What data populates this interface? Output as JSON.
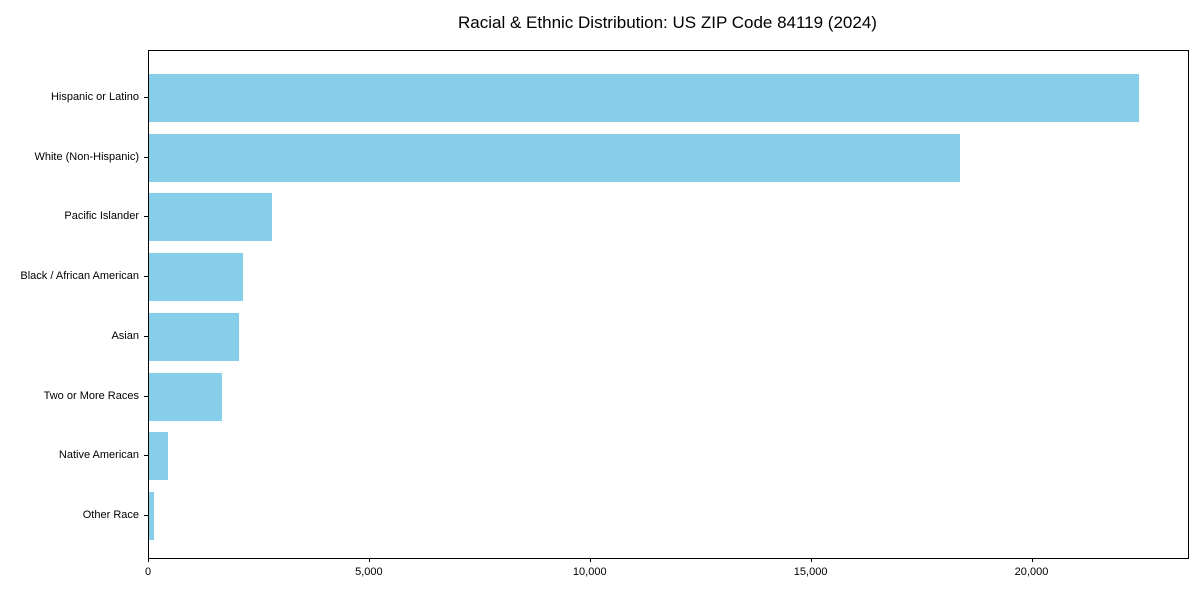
{
  "chart_data": {
    "type": "bar",
    "orientation": "horizontal",
    "title": "Racial & Ethnic Distribution: US ZIP Code 84119 (2024)",
    "xlabel": "",
    "ylabel": "",
    "categories": [
      "Hispanic or Latino",
      "White (Non-Hispanic)",
      "Pacific Islander",
      "Black / African American",
      "Asian",
      "Two or More Races",
      "Native American",
      "Other Race"
    ],
    "values": [
      22400,
      18350,
      2780,
      2130,
      2040,
      1660,
      420,
      110
    ],
    "xlim": [
      0,
      23520
    ],
    "xticks": [
      0,
      5000,
      10000,
      15000,
      20000
    ],
    "xtick_labels": [
      "0",
      "5,000",
      "10,000",
      "15,000",
      "20,000"
    ],
    "bar_color": "#87CEEB",
    "axis_color": "#000000",
    "text_color": "#000000",
    "grid": false,
    "legend": null
  }
}
